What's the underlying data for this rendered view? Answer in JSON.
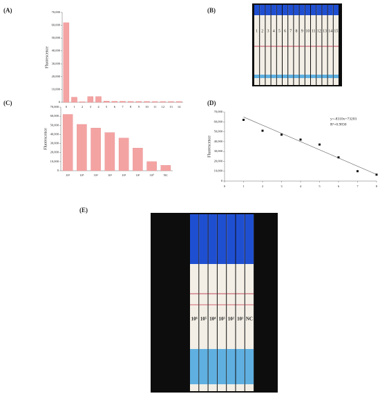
{
  "panel_labels": [
    "(A)",
    "(B)",
    "(C)",
    "(D)",
    "(E)"
  ],
  "chart_data": [
    {
      "type": "bar",
      "y_label": "Fluorescence",
      "color": "#f4a3a3",
      "categories": [
        "0",
        "1",
        "2",
        "3",
        "4",
        "5",
        "6",
        "7",
        "8",
        "9",
        "10",
        "11",
        "12",
        "13",
        "14"
      ],
      "values": [
        62000,
        4000,
        500,
        4500,
        4500,
        1000,
        800,
        800,
        700,
        700,
        700,
        600,
        600,
        600,
        600
      ],
      "ylim": [
        0,
        70000
      ],
      "yticks": [
        0,
        {
          "value": 10000,
          "label": "10,000"
        },
        {
          "value": 20000,
          "label": "20,000"
        },
        {
          "value": 30000,
          "label": "30,000"
        },
        {
          "value": 40000,
          "label": "40,000"
        },
        {
          "value": 50000,
          "label": "50,000"
        },
        {
          "value": 60000,
          "label": "60,000"
        },
        {
          "value": 70000,
          "label": "70,000"
        }
      ]
    },
    {
      "type": "bar",
      "y_label": "Fluorescence",
      "color": "#f4a3a3",
      "categories": [
        "10⁶",
        "10⁵",
        "10⁴",
        "10³",
        "10²",
        "10¹",
        "10⁰",
        "NC"
      ],
      "values": [
        62000,
        51000,
        47000,
        42000,
        36000,
        25000,
        10000,
        6000
      ],
      "ylim": [
        0,
        70000
      ],
      "yticks": [
        0,
        {
          "value": 10000,
          "label": "10,000"
        },
        {
          "value": 20000,
          "label": "20,000"
        },
        {
          "value": 30000,
          "label": "30,000"
        },
        {
          "value": 40000,
          "label": "40,000"
        },
        {
          "value": 50000,
          "label": "50,000"
        },
        {
          "value": 60000,
          "label": "60,000"
        },
        {
          "value": 70000,
          "label": "70,000"
        }
      ]
    },
    {
      "type": "scatter",
      "y_label": "Fluorescence",
      "color": "#111111",
      "x": [
        1,
        2,
        3,
        4,
        5,
        6,
        7,
        8
      ],
      "values": [
        62000,
        51000,
        47000,
        42000,
        37000,
        24000,
        10000,
        6500
      ],
      "fit": {
        "slope": -8310,
        "intercept": 73203
      },
      "annotations": [
        "y=-8310x+73203",
        "R²=0.9830"
      ],
      "xlim": [
        0,
        8
      ],
      "xticks": [
        0,
        1,
        2,
        3,
        4,
        5,
        6,
        7,
        8
      ],
      "ylim": [
        0,
        70000
      ],
      "yticks": [
        0,
        {
          "value": 10000,
          "label": "10,000"
        },
        {
          "value": 20000,
          "label": "20,000"
        },
        {
          "value": 30000,
          "label": "30,000"
        },
        {
          "value": 40000,
          "label": "40,000"
        },
        {
          "value": 50000,
          "label": "50,000"
        },
        {
          "value": 60000,
          "label": "60,000"
        },
        {
          "value": 70000,
          "label": "70,000"
        }
      ]
    }
  ],
  "photos": [
    {
      "strip_labels": [
        "1",
        "2",
        "3",
        "4",
        "5",
        "6",
        "7",
        "8",
        "9",
        "10",
        "11",
        "12",
        "13",
        "14",
        "15"
      ]
    },
    {
      "strip_labels": [
        "10⁶",
        "10⁵",
        "10⁴",
        "10³",
        "10²",
        "10¹",
        "NC"
      ]
    }
  ]
}
